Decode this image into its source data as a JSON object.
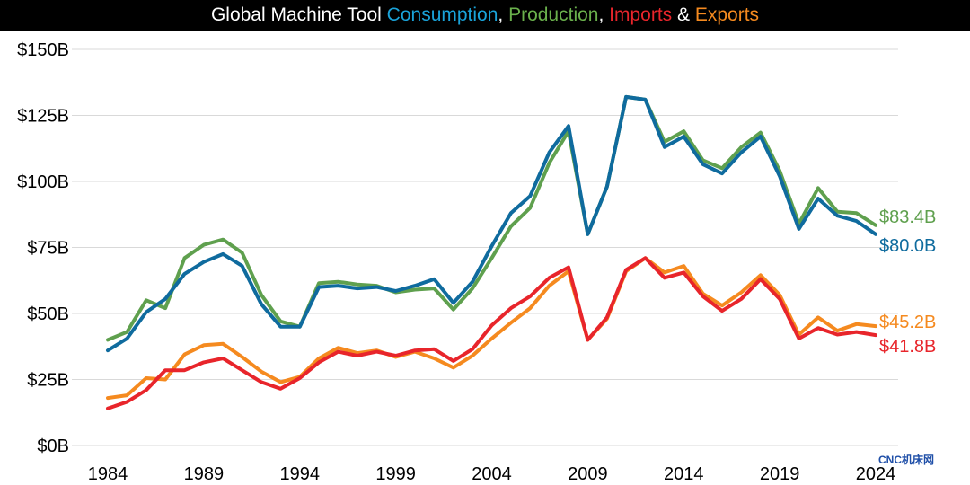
{
  "title_parts": [
    {
      "text": "Global Machine Tool ",
      "color": "#ffffff"
    },
    {
      "text": "Consumption",
      "color": "#1aa3d9"
    },
    {
      "text": ", ",
      "color": "#ffffff"
    },
    {
      "text": "Production",
      "color": "#6ab04c"
    },
    {
      "text": ", ",
      "color": "#ffffff"
    },
    {
      "text": "Imports",
      "color": "#e8252b"
    },
    {
      "text": " & ",
      "color": "#ffffff"
    },
    {
      "text": "Exports",
      "color": "#f58a1f"
    }
  ],
  "watermark": "CNC机床网",
  "chart_data": {
    "type": "line",
    "title": "Global Machine Tool Consumption, Production, Imports & Exports",
    "xlabel": "",
    "ylabel": "",
    "xlim": [
      1983,
      2025
    ],
    "ylim": [
      0,
      150
    ],
    "xticks": [
      1984,
      1989,
      1994,
      1999,
      2004,
      2009,
      2014,
      2019,
      2024
    ],
    "yticks": [
      0,
      25,
      50,
      75,
      100,
      125,
      150
    ],
    "ytick_labels": [
      "$0B",
      "$25B",
      "$50B",
      "$75B",
      "$100B",
      "$125B",
      "$150B"
    ],
    "grid": "horizontal",
    "x": [
      1984,
      1985,
      1986,
      1987,
      1988,
      1989,
      1990,
      1991,
      1992,
      1993,
      1994,
      1995,
      1996,
      1997,
      1998,
      1999,
      2000,
      2001,
      2002,
      2003,
      2004,
      2005,
      2006,
      2007,
      2008,
      2009,
      2010,
      2011,
      2012,
      2013,
      2014,
      2015,
      2016,
      2017,
      2018,
      2019,
      2020,
      2021,
      2022,
      2023,
      2024
    ],
    "series": [
      {
        "name": "Production",
        "color": "#5fa04e",
        "end_label": "$83.4B",
        "values": [
          40,
          43,
          55,
          52,
          71,
          76,
          78,
          73,
          57,
          47,
          45,
          61.5,
          62,
          61,
          60.5,
          58,
          59,
          59.5,
          51.5,
          59.5,
          71,
          83,
          90,
          107,
          119,
          80,
          98,
          132,
          131,
          115,
          119,
          108,
          105,
          113,
          118.5,
          104,
          84,
          97.5,
          88.5,
          88,
          83.4
        ]
      },
      {
        "name": "Consumption",
        "color": "#0f6b9e",
        "end_label": "$80.0B",
        "values": [
          36,
          40.5,
          50.5,
          55.5,
          65,
          69.5,
          72.5,
          68,
          53.5,
          45,
          45,
          60,
          60.5,
          59.5,
          60,
          58.5,
          60.5,
          63,
          54,
          62,
          75.5,
          88,
          94.5,
          111,
          121,
          80,
          98,
          132,
          131,
          113,
          117,
          106.5,
          103,
          111,
          117,
          102,
          82,
          93.5,
          87,
          85,
          80
        ]
      },
      {
        "name": "Exports",
        "color": "#f58a1f",
        "end_label": "$45.2B",
        "values": [
          18,
          19,
          25.5,
          25,
          34.5,
          38,
          38.5,
          33.5,
          28,
          24,
          26,
          33,
          37,
          35,
          36,
          33.5,
          35.5,
          33,
          29.5,
          34,
          40.5,
          46.5,
          52,
          60.5,
          66,
          40,
          48,
          66,
          71,
          65.5,
          68,
          57.5,
          53,
          58,
          64.5,
          57,
          42,
          48.5,
          43.5,
          46,
          45.2
        ]
      },
      {
        "name": "Imports",
        "color": "#e8252b",
        "end_label": "$41.8B",
        "values": [
          14,
          16.5,
          21,
          28.5,
          28.5,
          31.5,
          33,
          28.5,
          24,
          21.5,
          25.5,
          31.5,
          35.5,
          34,
          35.5,
          34,
          36,
          36.5,
          32,
          36.5,
          45.5,
          52,
          56.5,
          63.5,
          67.5,
          40,
          48.5,
          66.5,
          71,
          63.5,
          65.5,
          56.5,
          51,
          55.5,
          63,
          55.5,
          40.5,
          44.5,
          42,
          43,
          41.8
        ]
      }
    ],
    "label_colors": {
      "Production": "#5fa04e",
      "Consumption": "#0f6b9e",
      "Exports": "#f58a1f",
      "Imports": "#e8252b"
    }
  }
}
